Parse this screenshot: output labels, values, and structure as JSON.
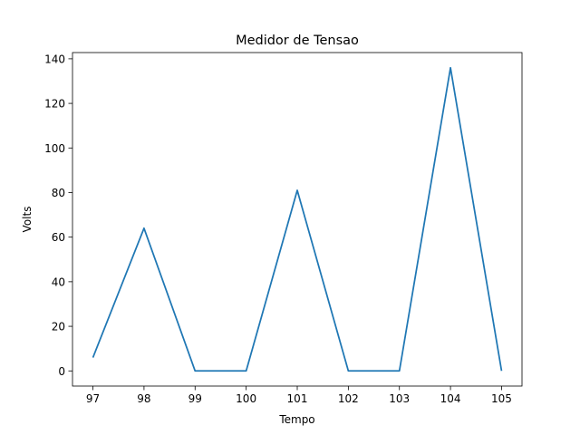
{
  "chart_data": {
    "type": "line",
    "title": "Medidor de Tensao",
    "xlabel": "Tempo",
    "ylabel": "Volts",
    "x": [
      97,
      98,
      99,
      100,
      101,
      102,
      103,
      104,
      105
    ],
    "series": [
      {
        "values": [
          6,
          64,
          0,
          0,
          81,
          0,
          0,
          136,
          0
        ],
        "color": "#1f77b4"
      }
    ],
    "xlim": [
      96.6,
      105.4
    ],
    "ylim": [
      -6.8,
      142.8
    ],
    "xticks": [
      "97",
      "98",
      "99",
      "100",
      "101",
      "102",
      "103",
      "104",
      "105"
    ],
    "yticks": [
      "0",
      "20",
      "40",
      "60",
      "80",
      "100",
      "120",
      "140"
    ],
    "grid": false,
    "legend": false
  }
}
